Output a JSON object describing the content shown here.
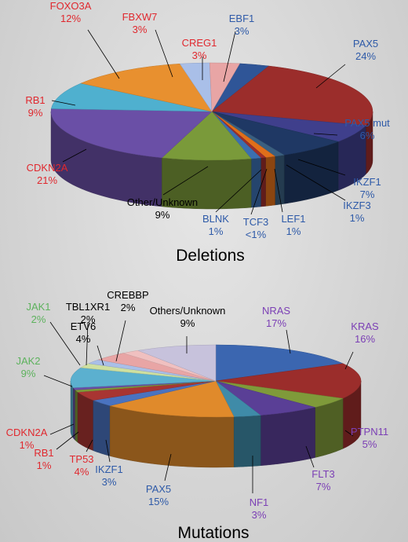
{
  "chart_data": [
    {
      "type": "pie",
      "title": "Deletions",
      "slices": [
        {
          "name": "EBF1",
          "pct": "3%",
          "value": 3,
          "label_color": "#2e5aa8"
        },
        {
          "name": "PAX5",
          "pct": "24%",
          "value": 24,
          "label_color": "#2e5aa8"
        },
        {
          "name": "PAX5 mut",
          "pct": "6%",
          "value": 6,
          "label_color": "#2e5aa8"
        },
        {
          "name": "IKZF1",
          "pct": "7%",
          "value": 7,
          "label_color": "#2e5aa8"
        },
        {
          "name": "IKZF3",
          "pct": "1%",
          "value": 1,
          "label_color": "#2e5aa8"
        },
        {
          "name": "LEF1",
          "pct": "1%",
          "value": 1,
          "label_color": "#2e5aa8"
        },
        {
          "name": "TCF3",
          "pct": "<1%",
          "value": 0.5,
          "label_color": "#2e5aa8"
        },
        {
          "name": "BLNK",
          "pct": "1%",
          "value": 1,
          "label_color": "#2e5aa8"
        },
        {
          "name": "Other/Unknown",
          "pct": "9%",
          "value": 9,
          "label_color": "#000000"
        },
        {
          "name": "CDKN2A",
          "pct": "21%",
          "value": 21,
          "label_color": "#e0282e"
        },
        {
          "name": "RB1",
          "pct": "9%",
          "value": 9,
          "label_color": "#e0282e"
        },
        {
          "name": "FOXO3A",
          "pct": "12%",
          "value": 12,
          "label_color": "#e0282e"
        },
        {
          "name": "FBXW7",
          "pct": "3%",
          "value": 3,
          "label_color": "#e0282e"
        },
        {
          "name": "CREG1",
          "pct": "3%",
          "value": 3,
          "label_color": "#e0282e"
        }
      ]
    },
    {
      "type": "pie",
      "title": "Mutations",
      "slices": [
        {
          "name": "NRAS",
          "pct": "17%",
          "value": 17,
          "label_color": "#7b3fb5"
        },
        {
          "name": "KRAS",
          "pct": "16%",
          "value": 16,
          "label_color": "#7b3fb5"
        },
        {
          "name": "PTPN11",
          "pct": "5%",
          "value": 5,
          "label_color": "#7b3fb5"
        },
        {
          "name": "FLT3",
          "pct": "7%",
          "value": 7,
          "label_color": "#7b3fb5"
        },
        {
          "name": "NF1",
          "pct": "3%",
          "value": 3,
          "label_color": "#7b3fb5"
        },
        {
          "name": "PAX5",
          "pct": "15%",
          "value": 15,
          "label_color": "#2e5aa8"
        },
        {
          "name": "IKZF1",
          "pct": "3%",
          "value": 3,
          "label_color": "#2e5aa8"
        },
        {
          "name": "TP53",
          "pct": "4%",
          "value": 4,
          "label_color": "#e0282e"
        },
        {
          "name": "RB1",
          "pct": "1%",
          "value": 1,
          "label_color": "#e0282e"
        },
        {
          "name": "CDKN2A",
          "pct": "1%",
          "value": 1,
          "label_color": "#e0282e"
        },
        {
          "name": "JAK2",
          "pct": "9%",
          "value": 9,
          "label_color": "#5db25d"
        },
        {
          "name": "JAK1",
          "pct": "2%",
          "value": 2,
          "label_color": "#5db25d"
        },
        {
          "name": "TBL1XR1",
          "pct": "2%",
          "value": 2,
          "label_color": "#000000"
        },
        {
          "name": "ETV6",
          "pct": "4%",
          "value": 4,
          "label_color": "#000000"
        },
        {
          "name": "CREBBP",
          "pct": "2%",
          "value": 2,
          "label_color": "#000000"
        },
        {
          "name": "Others/Unknown",
          "pct": "9%",
          "value": 9,
          "label_color": "#000000"
        }
      ]
    }
  ],
  "colors": {
    "deletions": [
      "#2f5597",
      "#9b2d2b",
      "#3f3f8c",
      "#1f3864",
      "#3a5f80",
      "#e06f1a",
      "#9b2d2b",
      "#3b6fb0",
      "#7a9a3a",
      "#6a4fa6",
      "#4fb0cf",
      "#e8902f",
      "#a9bfe8",
      "#e8a5a5"
    ],
    "mutations": [
      "#3b66b0",
      "#9b2d2b",
      "#7f9a3a",
      "#5a3f96",
      "#3f8ba8",
      "#e08a2b",
      "#4a73c0",
      "#a83532",
      "#7f9a3a",
      "#6a4fa6",
      "#5bb0cf",
      "#cfe0a0",
      "#a9bfe8",
      "#e8a5a5",
      "#f0c0c0",
      "#c7c2dc"
    ]
  }
}
